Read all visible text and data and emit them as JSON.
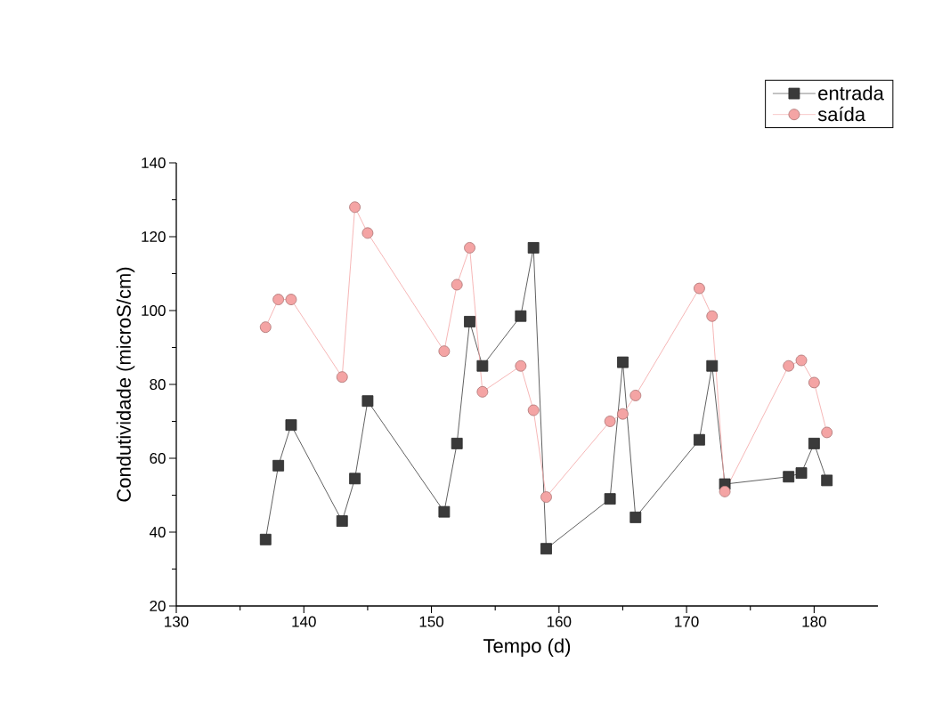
{
  "chart_data": {
    "type": "line",
    "xlabel": "Tempo (d)",
    "ylabel": "Condutividade (microS/cm)",
    "xlim": [
      130,
      185
    ],
    "xticks": [
      130,
      140,
      150,
      160,
      170,
      180
    ],
    "ylim": [
      20,
      140
    ],
    "yticks": [
      20,
      40,
      60,
      80,
      100,
      120,
      140
    ],
    "grid": false,
    "legend": "top right",
    "line_style": "solid",
    "series": [
      {
        "name": "entrada",
        "color": "#3a3a3a",
        "marker": "square",
        "x": [
          137,
          138,
          139,
          143,
          144,
          145,
          151,
          152,
          153,
          154,
          157,
          158,
          159,
          164,
          165,
          166,
          171,
          172,
          173,
          178,
          179,
          180,
          181
        ],
        "values": [
          38,
          58,
          69,
          43,
          54.5,
          75.5,
          45.5,
          64,
          97,
          85,
          98.5,
          117,
          35.5,
          49,
          86,
          44,
          65,
          85,
          53,
          55,
          56,
          64,
          54
        ]
      },
      {
        "name": "saída",
        "color": "#f4a4a4",
        "marker": "circle",
        "x": [
          137,
          138,
          139,
          143,
          144,
          145,
          151,
          152,
          153,
          154,
          157,
          158,
          159,
          164,
          165,
          166,
          171,
          172,
          173,
          178,
          179,
          180,
          181
        ],
        "values": [
          95.5,
          103,
          103,
          82,
          128,
          121,
          89,
          107,
          117,
          78,
          85,
          73,
          49.5,
          70,
          72,
          77,
          106,
          98.5,
          51,
          85,
          86.5,
          80.5,
          67
        ]
      }
    ]
  }
}
